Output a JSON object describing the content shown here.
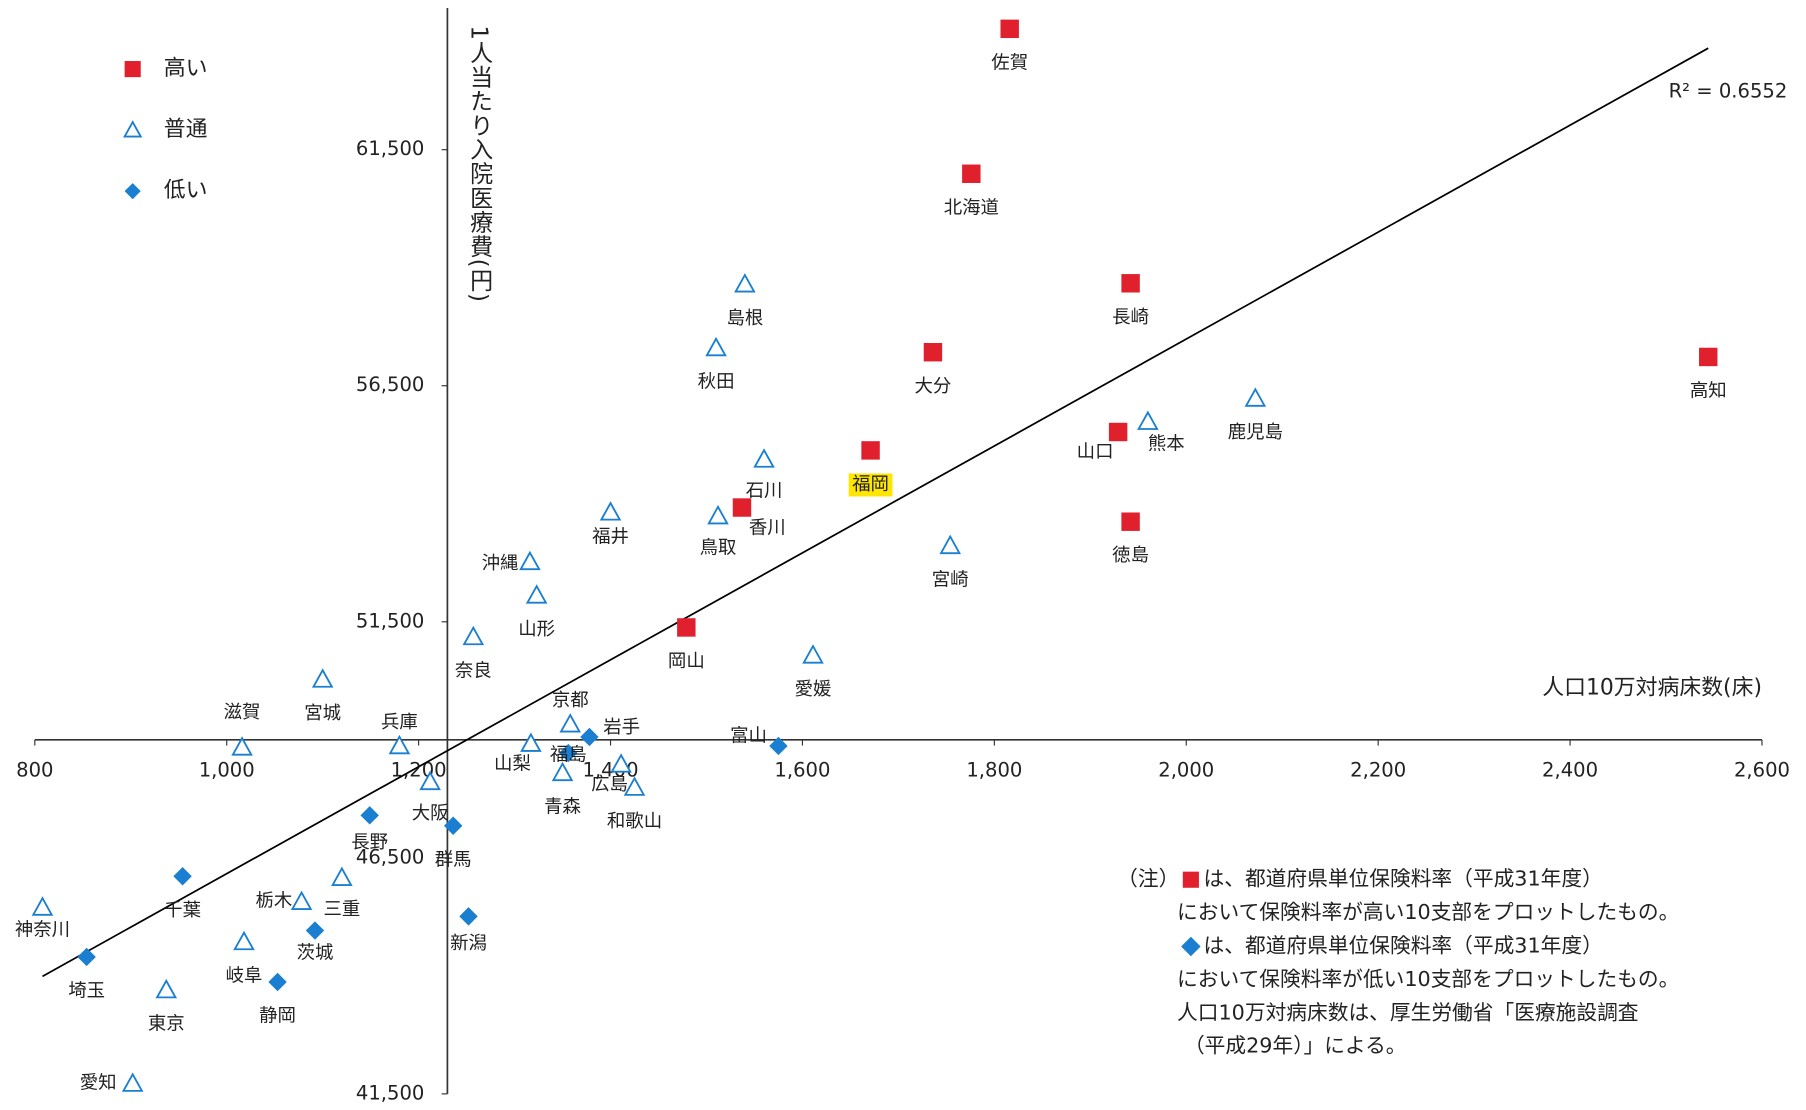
{
  "chart_data": {
    "type": "scatter",
    "y_axis_title": "1人当たり入院医療費(円)",
    "x_axis_title": "人口10万対病床数(床)",
    "xlim": [
      800,
      2600
    ],
    "ylim": [
      41500,
      64500
    ],
    "xticks": [
      800,
      {
        "value": 1000,
        "label": "1,000"
      },
      {
        "value": 1200,
        "label": "1,200"
      },
      {
        "value": 1400,
        "label": "1,400"
      },
      {
        "value": 1600,
        "label": "1,600"
      },
      {
        "value": 1800,
        "label": "1,800"
      },
      {
        "value": 2000,
        "label": "2,000"
      },
      {
        "value": 2200,
        "label": "2,200"
      },
      {
        "value": 2400,
        "label": "2,400"
      },
      {
        "value": 2600,
        "label": "2,600"
      }
    ],
    "yticks": [
      {
        "value": 41500,
        "label": "41,500"
      },
      {
        "value": 46500,
        "label": "46,500"
      },
      {
        "value": 51500,
        "label": "51,500"
      },
      {
        "value": 56500,
        "label": "56,500"
      },
      {
        "value": 61500,
        "label": "61,500"
      }
    ],
    "x_axis_at": 49000,
    "y_axis_at": 1230,
    "legend": "upper left",
    "series": [
      {
        "name": "高い",
        "color": "#e0202c",
        "marker": "square",
        "labels": [
          "佐賀",
          "北海道",
          "長崎",
          "大分",
          "高知",
          "山口",
          "福岡",
          "徳島",
          "香川",
          "岡山"
        ],
        "x": [
          1816,
          1776,
          1942,
          1736,
          2544,
          1929,
          1671,
          1942,
          1537,
          1479
        ],
        "y": [
          64060,
          60990,
          58670,
          57210,
          57110,
          55520,
          55130,
          53620,
          53920,
          51380
        ]
      },
      {
        "name": "普通",
        "color": "#1a7fd1",
        "marker": "triangle",
        "labels": [
          "島根",
          "秋田",
          "鹿児島",
          "熊本",
          "石川",
          "福井",
          "鳥取",
          "宮崎",
          "沖縄",
          "山形",
          "奈良",
          "愛媛",
          "宮城",
          "滋賀",
          "兵庫",
          "山梨",
          "京都",
          "青森",
          "広島",
          "和歌山",
          "大阪",
          "栃木",
          "三重",
          "神奈川",
          "岐阜",
          "東京",
          "愛知"
        ],
        "x": [
          1540,
          1510,
          2072,
          1960,
          1560,
          1400,
          1512,
          1754,
          1316,
          1323,
          1257,
          1611,
          1100,
          1016,
          1180,
          1317,
          1358,
          1350,
          1411,
          1425,
          1212,
          1078,
          1120,
          808,
          1018,
          937,
          902
        ],
        "y": [
          58650,
          57300,
          56230,
          55740,
          54940,
          53820,
          53740,
          53110,
          52770,
          52060,
          51180,
          50790,
          50280,
          48840,
          48870,
          48920,
          49330,
          48300,
          48480,
          47990,
          48110,
          45570,
          46080,
          45450,
          44720,
          43700,
          41720
        ]
      },
      {
        "name": "低い",
        "color": "#1a7fd1",
        "marker": "diamond",
        "labels": [
          "岩手",
          "富山",
          "長野",
          "群馬",
          "千葉",
          "茨城",
          "新潟",
          "埼玉",
          "静岡",
          "福島"
        ],
        "x": [
          1378,
          1575,
          1149,
          1236,
          954,
          1092,
          1252,
          854,
          1053,
          1356
        ],
        "y": [
          49060,
          48870,
          47400,
          47180,
          46110,
          44960,
          45260,
          44400,
          43870,
          48720
        ]
      }
    ],
    "highlight": {
      "series": 0,
      "index": 6,
      "color": "#ffe600"
    },
    "trendline": {
      "x": [
        808,
        2544
      ],
      "y": [
        43990,
        63650
      ],
      "label": "R² = 0.6552",
      "color": "#000"
    },
    "note": {
      "prefix": "（注）",
      "lines": [
        "は、都道府県単位保険料率（平成31年度）",
        "において保険料率が高い10支部をプロットしたもの。",
        "は、都道府県単位保険料率（平成31年度）",
        "において保険料率が低い10支部をプロットしたもの。",
        "人口10万対病床数は、厚生労働省「医療施設調査",
        "（平成29年）」による。"
      ]
    }
  }
}
